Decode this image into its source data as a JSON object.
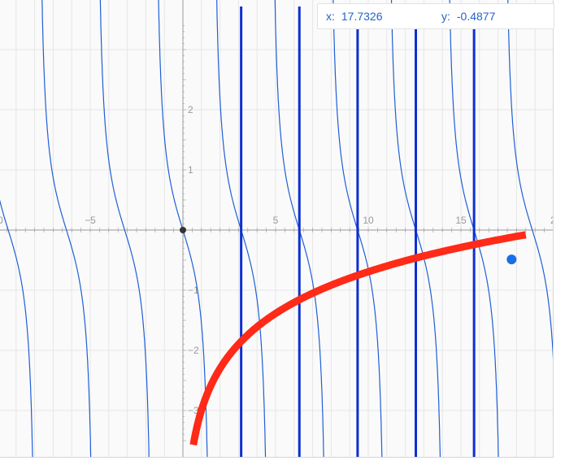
{
  "readout": {
    "x_label": "x:",
    "x_value": "17.7326",
    "y_label": "y:",
    "y_value": "-0.4877"
  },
  "colors": {
    "tan_curve": "#1f5fd6",
    "log_curve": "#ff2a17",
    "vertical_lines": "#0d2fd1",
    "axis": "#9a9a9a",
    "grid": "#e6e6e6",
    "point": "#1a6fe8",
    "origin": "#333333"
  },
  "chart_data": {
    "type": "line",
    "functions": [
      {
        "expression": "y = -tan(x)",
        "color": "#1f5fd6"
      },
      {
        "expression": "y = ln(x / 20)",
        "x_start": 0.15,
        "x_end": 18.5,
        "color": "#ff2a17"
      }
    ],
    "vertical_lines_x": [
      3.1416,
      6.2832,
      9.4248,
      12.5664,
      15.708
    ],
    "highlighted_point": {
      "x": 17.7326,
      "y": -0.4877
    },
    "x_ticks": [
      "−5",
      "5",
      "10",
      "15"
    ],
    "x_ticks_partial": [
      "0",
      "2"
    ],
    "y_ticks": [
      "2",
      "1",
      "−1",
      "−2",
      "−3"
    ],
    "xlim": [
      -10,
      20
    ],
    "ylim": [
      -3.8,
      3.8
    ],
    "grid": true
  }
}
